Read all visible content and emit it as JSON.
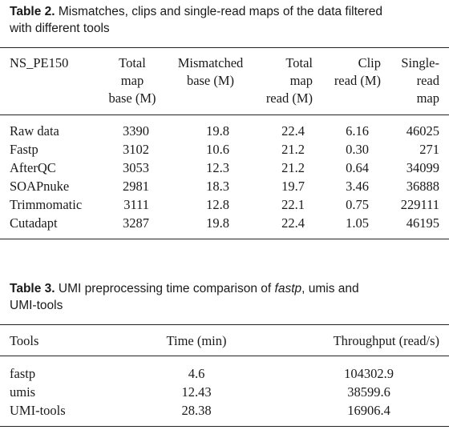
{
  "table2": {
    "caption_label": "Table 2.",
    "caption_line1": "Mismatches, clips and single-read maps of the data filtered",
    "caption_line2": "with different tools",
    "headers": [
      [
        "NS_PE150"
      ],
      [
        "Total",
        "map",
        "base (M)"
      ],
      [
        "Mismatched",
        "base (M)"
      ],
      [
        "Total",
        "map",
        "read (M)"
      ],
      [
        "Clip",
        "read (M)"
      ],
      [
        "Single-",
        "read",
        "map"
      ]
    ],
    "rows": [
      [
        "Raw data",
        "3390",
        "19.8",
        "22.4",
        "6.16",
        "46025"
      ],
      [
        "Fastp",
        "3102",
        "10.6",
        "21.2",
        "0.30",
        "271"
      ],
      [
        "AfterQC",
        "3053",
        "12.3",
        "21.2",
        "0.64",
        "34099"
      ],
      [
        "SOAPnuke",
        "2981",
        "18.3",
        "19.7",
        "3.46",
        "36888"
      ],
      [
        "Trimmomatic",
        "3111",
        "12.8",
        "22.1",
        "0.75",
        "229111"
      ],
      [
        "Cutadapt",
        "3287",
        "19.8",
        "22.4",
        "1.05",
        "46195"
      ]
    ]
  },
  "table3": {
    "caption_label": "Table 3.",
    "caption_pre": "UMI preprocessing time comparison of",
    "caption_em": "fastp",
    "caption_post": ", umis and",
    "caption_line2": "UMI-tools",
    "headers": [
      "Tools",
      "Time (min)",
      "Throughput (read/s)"
    ],
    "rows": [
      [
        "fastp",
        "4.6",
        "104302.9"
      ],
      [
        "umis",
        "12.43",
        "38599.6"
      ],
      [
        "UMI-tools",
        "28.38",
        "16906.4"
      ]
    ]
  }
}
